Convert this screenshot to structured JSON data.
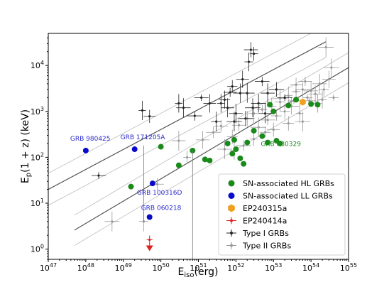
{
  "chart_data": {
    "type": "scatter",
    "x_scale": "log",
    "y_scale": "log",
    "xlim": [
      1e+47,
      1e+55
    ],
    "ylim": [
      0.6,
      50000
    ],
    "xlabel": "E_iso(erg)",
    "ylabel": "E_p(1 + z) (keV)",
    "x_ticks": [
      {
        "value": 1e+47,
        "label": "10^47"
      },
      {
        "value": 1e+48,
        "label": "10^48"
      },
      {
        "value": 1e+49,
        "label": "10^49"
      },
      {
        "value": 1e+50,
        "label": "10^50"
      },
      {
        "value": 1e+51,
        "label": "10^51"
      },
      {
        "value": 1e+52,
        "label": "10^52"
      },
      {
        "value": 1e+53,
        "label": "10^53"
      },
      {
        "value": 1e+54,
        "label": "10^54"
      },
      {
        "value": 1e+55,
        "label": "10^55"
      }
    ],
    "y_ticks": [
      {
        "value": 1,
        "label": "10^0"
      },
      {
        "value": 10,
        "label": "10^1"
      },
      {
        "value": 100,
        "label": "10^2"
      },
      {
        "value": 1000,
        "label": "10^3"
      },
      {
        "value": 10000,
        "label": "10^4"
      }
    ],
    "reference_lines": [
      {
        "x": [
          1e+47,
          2.5e+54
        ],
        "y": [
          20,
          33000
        ],
        "style": "solid",
        "color": "#555555"
      },
      {
        "x": [
          1e+47,
          2.5e+54
        ],
        "y": [
          45,
          75000
        ],
        "style": "thin",
        "color": "#bbbbbb"
      },
      {
        "x": [
          1e+47,
          2.5e+54
        ],
        "y": [
          9,
          15000
        ],
        "style": "thin",
        "color": "#bbbbbb"
      },
      {
        "x": [
          5e+47,
          1e+55
        ],
        "y": [
          2.6,
          9000
        ],
        "style": "solid",
        "color": "#555555"
      },
      {
        "x": [
          5e+47,
          1e+55
        ],
        "y": [
          5.5,
          19000
        ],
        "style": "thin",
        "color": "#bbbbbb"
      },
      {
        "x": [
          5e+47,
          1e+55
        ],
        "y": [
          1.2,
          4200
        ],
        "style": "thin",
        "color": "#bbbbbb"
      }
    ],
    "series": [
      {
        "name": "SN-associated HL GRBs",
        "marker": "circle",
        "color": "#1a8a1a",
        "points": [
          {
            "x": 1e+50,
            "y": 170
          },
          {
            "x": 1.6e+49,
            "y": 23
          },
          {
            "x": 3e+50,
            "y": 67
          },
          {
            "x": 7e+50,
            "y": 140
          },
          {
            "x": 1.5e+51,
            "y": 90
          },
          {
            "x": 2e+51,
            "y": 85
          },
          {
            "x": 8e+51,
            "y": 120
          },
          {
            "x": 1e+52,
            "y": 150
          },
          {
            "x": 1.3e+52,
            "y": 95
          },
          {
            "x": 1.6e+52,
            "y": 72
          },
          {
            "x": 6e+51,
            "y": 200
          },
          {
            "x": 9e+51,
            "y": 240
          },
          {
            "x": 2e+52,
            "y": 210
          },
          {
            "x": 3e+52,
            "y": 380
          },
          {
            "x": 5e+52,
            "y": 290
          },
          {
            "x": 1e+53,
            "y": 1000
          },
          {
            "x": 7e+52,
            "y": 210
          },
          {
            "x": 1.2e+53,
            "y": 230
          },
          {
            "x": 1.5e+53,
            "y": 200
          },
          {
            "x": 2.5e+53,
            "y": 1350
          },
          {
            "x": 4e+53,
            "y": 1800
          },
          {
            "x": 1e+54,
            "y": 1450
          },
          {
            "x": 1.5e+54,
            "y": 1400
          },
          {
            "x": 8e+52,
            "y": 1400
          }
        ]
      },
      {
        "name": "SN-associated LL GRBs",
        "marker": "circle",
        "color": "#0a0acc",
        "points": [
          {
            "x": 1e+48,
            "y": 140
          },
          {
            "x": 2e+49,
            "y": 150
          },
          {
            "x": 6e+49,
            "y": 27
          },
          {
            "x": 5e+49,
            "y": 5
          }
        ]
      },
      {
        "name": "EP240315a",
        "marker": "hexagon",
        "color": "#f0a020",
        "points": [
          {
            "x": 6e+53,
            "y": 1600
          }
        ]
      },
      {
        "name": "EP240414a",
        "marker": "errorbar",
        "color": "#e02020",
        "points": [
          {
            "x": 5e+49,
            "y": 1.6,
            "upper_limit": true
          }
        ]
      },
      {
        "name": "Type I GRBs",
        "marker": "errorbar",
        "color": "#222222",
        "points": [
          {
            "x": 2.2e+48,
            "y": 40
          },
          {
            "x": 3.2e+49,
            "y": 1050
          },
          {
            "x": 5e+49,
            "y": 780
          },
          {
            "x": 4e+50,
            "y": 1200
          },
          {
            "x": 2e+51,
            "y": 1500
          },
          {
            "x": 4e+51,
            "y": 1500
          },
          {
            "x": 6e+51,
            "y": 1200
          },
          {
            "x": 1e+52,
            "y": 900
          },
          {
            "x": 2e+52,
            "y": 2500
          },
          {
            "x": 2.5e+52,
            "y": 22000
          },
          {
            "x": 3e+52,
            "y": 18000
          },
          {
            "x": 5e+52,
            "y": 4500
          },
          {
            "x": 7e+52,
            "y": 2500
          },
          {
            "x": 3e+51,
            "y": 600
          },
          {
            "x": 8e+51,
            "y": 3500
          },
          {
            "x": 1.5e+52,
            "y": 5000
          },
          {
            "x": 5e+51,
            "y": 1800
          },
          {
            "x": 1.2e+51,
            "y": 2000
          },
          {
            "x": 3e+50,
            "y": 1500
          },
          {
            "x": 8e+50,
            "y": 800
          },
          {
            "x": 2.2e+52,
            "y": 12000
          },
          {
            "x": 1.2e+53,
            "y": 3000
          },
          {
            "x": 2e+53,
            "y": 2000
          },
          {
            "x": 1.3e+52,
            "y": 2500
          },
          {
            "x": 4e+52,
            "y": 1500
          },
          {
            "x": 6e+52,
            "y": 900
          },
          {
            "x": 9e+51,
            "y": 600
          },
          {
            "x": 1.8e+52,
            "y": 700
          },
          {
            "x": 2.8e+52,
            "y": 1200
          },
          {
            "x": 7e+51,
            "y": 2600
          }
        ]
      },
      {
        "name": "Type II GRBs",
        "marker": "errorbar",
        "color": "#999999",
        "points": [
          {
            "x": 5e+48,
            "y": 4
          },
          {
            "x": 3.5e+49,
            "y": 4
          },
          {
            "x": 8e+49,
            "y": 26
          },
          {
            "x": 3e+50,
            "y": 230
          },
          {
            "x": 5e+50,
            "y": 100
          },
          {
            "x": 1.3e+51,
            "y": 240
          },
          {
            "x": 4e+51,
            "y": 480
          },
          {
            "x": 5e+51,
            "y": 150
          },
          {
            "x": 8e+51,
            "y": 280
          },
          {
            "x": 1.2e+52,
            "y": 500
          },
          {
            "x": 2e+52,
            "y": 700
          },
          {
            "x": 3e+52,
            "y": 900
          },
          {
            "x": 4e+52,
            "y": 450
          },
          {
            "x": 5e+52,
            "y": 1100
          },
          {
            "x": 7e+52,
            "y": 650
          },
          {
            "x": 9e+52,
            "y": 1300
          },
          {
            "x": 1.2e+53,
            "y": 800
          },
          {
            "x": 1.5e+53,
            "y": 1600
          },
          {
            "x": 2e+53,
            "y": 1000
          },
          {
            "x": 2.5e+53,
            "y": 2200
          },
          {
            "x": 3e+53,
            "y": 1300
          },
          {
            "x": 4e+53,
            "y": 2700
          },
          {
            "x": 5e+53,
            "y": 900
          },
          {
            "x": 6e+53,
            "y": 3000
          },
          {
            "x": 8e+53,
            "y": 2000
          },
          {
            "x": 1e+54,
            "y": 2800
          },
          {
            "x": 1.3e+54,
            "y": 2400
          },
          {
            "x": 1.7e+54,
            "y": 4000
          },
          {
            "x": 2.2e+54,
            "y": 3000
          },
          {
            "x": 3e+54,
            "y": 5000
          },
          {
            "x": 4e+54,
            "y": 2000
          },
          {
            "x": 6e+53,
            "y": 600
          },
          {
            "x": 2.5e+53,
            "y": 550
          },
          {
            "x": 1e+53,
            "y": 400
          },
          {
            "x": 6e+52,
            "y": 350
          },
          {
            "x": 3e+52,
            "y": 250
          },
          {
            "x": 1.6e+52,
            "y": 180
          },
          {
            "x": 9e+51,
            "y": 140
          },
          {
            "x": 2.5e+51,
            "y": 350
          },
          {
            "x": 7e+53,
            "y": 4500
          },
          {
            "x": 3.5e+54,
            "y": 9000
          },
          {
            "x": 2.5e+54,
            "y": 25000
          },
          {
            "x": 1.5e+53,
            "y": 1900
          },
          {
            "x": 3.5e+53,
            "y": 1700
          },
          {
            "x": 9e+53,
            "y": 1700
          },
          {
            "x": 1.5e+54,
            "y": 1500
          },
          {
            "x": 4e+53,
            "y": 3800
          },
          {
            "x": 2e+54,
            "y": 1800
          }
        ]
      }
    ],
    "annotations": [
      {
        "text": "GRB 980425",
        "color": "#2b2bcc",
        "x": 1e+48,
        "y": 140
      },
      {
        "text": "GRB 171205A",
        "color": "#2b2bcc",
        "x": 2e+49,
        "y": 150
      },
      {
        "text": "GRB 100316D",
        "color": "#2b2bcc",
        "x": 6e+49,
        "y": 27
      },
      {
        "text": "GRB 060218",
        "color": "#2b2bcc",
        "x": 5e+49,
        "y": 5
      },
      {
        "text": "GRB 030329",
        "color": "#1a8a1a",
        "x": 5e+52,
        "y": 290
      }
    ],
    "legend_position": "lower-right"
  }
}
